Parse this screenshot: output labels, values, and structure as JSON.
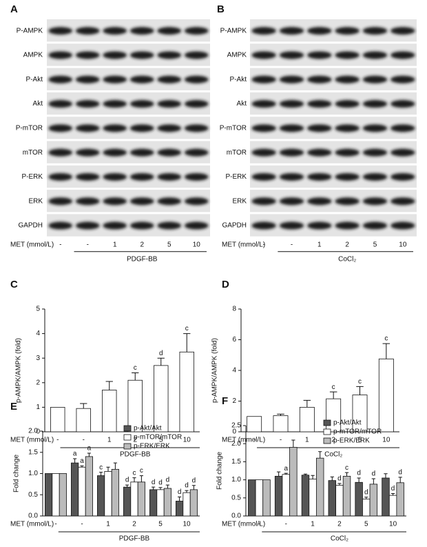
{
  "blots": [
    {
      "panel": "A",
      "rows": [
        "P-AMPK",
        "AMPK",
        "P-Akt",
        "Akt",
        "P-mTOR",
        "mTOR",
        "P-ERK",
        "ERK",
        "GAPDH"
      ],
      "dose_label": "MET (mmol/L)",
      "doses": [
        "-",
        "-",
        "1",
        "2",
        "5",
        "10"
      ],
      "treatment": "PDGF-BB"
    },
    {
      "panel": "B",
      "rows": [
        "P-AMPK",
        "AMPK",
        "P-Akt",
        "Akt",
        "P-mTOR",
        "mTOR",
        "P-ERK",
        "ERK",
        "GAPDH"
      ],
      "dose_label": "MET (mmol/L)",
      "doses": [
        "-",
        "-",
        "1",
        "2",
        "5",
        "10"
      ],
      "treatment": "CoCl₂"
    }
  ],
  "chart_data": [
    {
      "type": "bar",
      "panel": "C",
      "ylabel": "p-AMPK/AMPK (fold)",
      "xlabel": "MET (mmol/L)",
      "treatment": "PDGF-BB",
      "categories": [
        "-",
        "-",
        "1",
        "2",
        "5",
        "10"
      ],
      "values": [
        1,
        0.95,
        1.7,
        2.1,
        2.7,
        3.25
      ],
      "errors": [
        null,
        0.2,
        0.35,
        0.3,
        0.3,
        0.75
      ],
      "letters": [
        null,
        null,
        null,
        "c",
        "d",
        "c"
      ],
      "color": "#ffffff",
      "ylim": [
        0,
        5
      ],
      "yticks": [
        0,
        1,
        2,
        3,
        4,
        5
      ]
    },
    {
      "type": "bar",
      "panel": "D",
      "ylabel": "p-AMPK/AMPK (fold)",
      "xlabel": "MET (mmol/L)",
      "treatment": "CoCl₂",
      "categories": [
        "-",
        "-",
        "1",
        "2",
        "5",
        "10"
      ],
      "values": [
        1,
        1.05,
        1.6,
        2.15,
        2.4,
        4.75
      ],
      "errors": [
        null,
        0.1,
        0.45,
        0.45,
        0.55,
        1.0
      ],
      "letters": [
        null,
        null,
        null,
        "c",
        "c",
        "c"
      ],
      "color": "#ffffff",
      "ylim": [
        0,
        8
      ],
      "yticks": [
        0,
        2,
        4,
        6,
        8
      ]
    },
    {
      "type": "bar",
      "panel": "E",
      "ylabel": "Fold change",
      "xlabel": "MET (mmol/L)",
      "treatment": "PDGF-BB",
      "categories": [
        "-",
        "-",
        "1",
        "2",
        "5",
        "10"
      ],
      "series": [
        {
          "name": "p-Akt/Akt",
          "color": "#555555",
          "values": [
            1,
            1.25,
            0.95,
            0.68,
            0.62,
            0.35
          ],
          "errors": [
            null,
            0.1,
            0.08,
            0.05,
            0.06,
            0.1
          ],
          "letters": [
            null,
            "a",
            "c",
            "d",
            "d",
            "d"
          ]
        },
        {
          "name": "p-mTOR/mTOR",
          "color": "#ffffff",
          "values": [
            1,
            1.15,
            1.05,
            0.8,
            0.62,
            0.55
          ],
          "errors": [
            null,
            0.03,
            0.1,
            0.1,
            0.05,
            0.05
          ],
          "letters": [
            null,
            "a",
            null,
            "c",
            "d",
            "d"
          ]
        },
        {
          "name": "p-ERK/ERK",
          "color": "#bbbbbb",
          "values": [
            1,
            1.4,
            1.1,
            0.8,
            0.65,
            0.62
          ],
          "errors": [
            null,
            0.08,
            0.15,
            0.15,
            0.08,
            0.1
          ],
          "letters": [
            null,
            "a",
            null,
            "c",
            "d",
            "d"
          ]
        }
      ],
      "ylim": [
        0,
        2
      ],
      "yticks": [
        {
          "value": 0,
          "label": "0.0"
        },
        0.5,
        {
          "value": 1,
          "label": "1.0"
        },
        1.5,
        {
          "value": 2,
          "label": "2.0"
        }
      ]
    },
    {
      "type": "bar",
      "panel": "F",
      "ylabel": "Fold change",
      "xlabel": "MET (mmol/L)",
      "treatment": "CoCl₂",
      "categories": [
        "-",
        "-",
        "1",
        "2",
        "5",
        "10"
      ],
      "series": [
        {
          "name": "p-Akt/Akt",
          "color": "#555555",
          "values": [
            1,
            1.1,
            1.13,
            0.98,
            0.93,
            1.05
          ],
          "errors": [
            null,
            0.12,
            0.03,
            0.1,
            0.12,
            0.12
          ],
          "letters": [
            null,
            null,
            null,
            null,
            "d",
            null
          ]
        },
        {
          "name": "p-mTOR/mTOR",
          "color": "#ffffff",
          "values": [
            1,
            1.15,
            1.02,
            0.85,
            0.47,
            0.57
          ],
          "errors": [
            null,
            0.03,
            0.1,
            0.05,
            0.05,
            0.05
          ],
          "letters": [
            null,
            "a",
            null,
            "d",
            "d",
            "d"
          ]
        },
        {
          "name": "p-ERK/ERK",
          "color": "#bbbbbb",
          "values": [
            1,
            1.9,
            1.6,
            1.1,
            0.88,
            0.92
          ],
          "errors": [
            null,
            0.2,
            0.18,
            0.1,
            0.15,
            0.15
          ],
          "letters": [
            null,
            null,
            null,
            "c",
            "d",
            "d"
          ]
        }
      ],
      "ylim": [
        0,
        2.5
      ],
      "yticks": [
        {
          "value": 0,
          "label": "0.0"
        },
        0.5,
        {
          "value": 1,
          "label": "1.0"
        },
        1.5,
        {
          "value": 2,
          "label": "2.0"
        },
        2.5
      ]
    }
  ]
}
